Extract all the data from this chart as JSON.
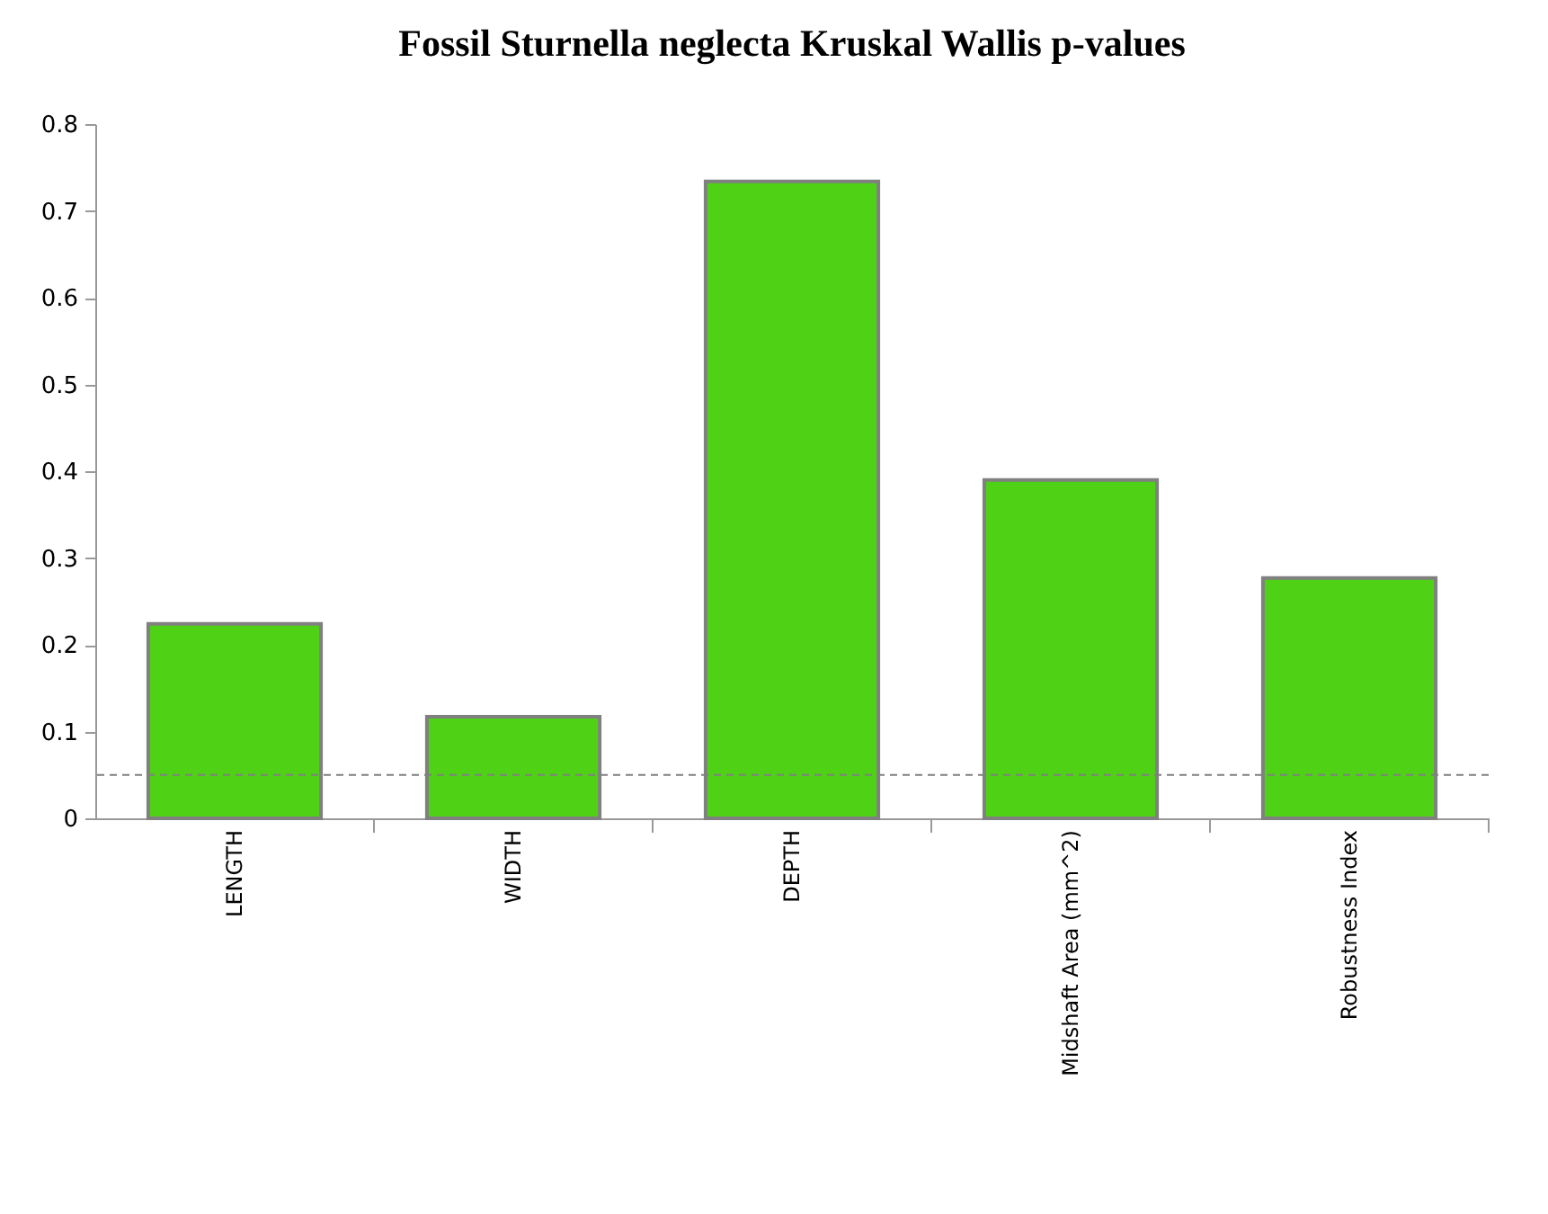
{
  "chart_data": {
    "type": "bar",
    "title": "Fossil Sturnella neglecta Kruskal Wallis p-values",
    "categories": [
      "LENGTH",
      "WIDTH",
      "DEPTH",
      "Midshaft Area (mm^2)",
      "Robustness Index"
    ],
    "values": [
      0.224,
      0.117,
      0.734,
      0.39,
      0.277
    ],
    "color": "#4fd116",
    "ylim": [
      0,
      0.8
    ],
    "yticks": [
      0,
      0.1,
      0.2,
      0.3,
      0.4,
      0.5,
      0.6,
      0.7,
      0.8
    ],
    "grid": false,
    "ref_lines": [
      {
        "axis": "y",
        "value": 0.05,
        "color": "#808080",
        "line_style": "dashed"
      }
    ]
  }
}
